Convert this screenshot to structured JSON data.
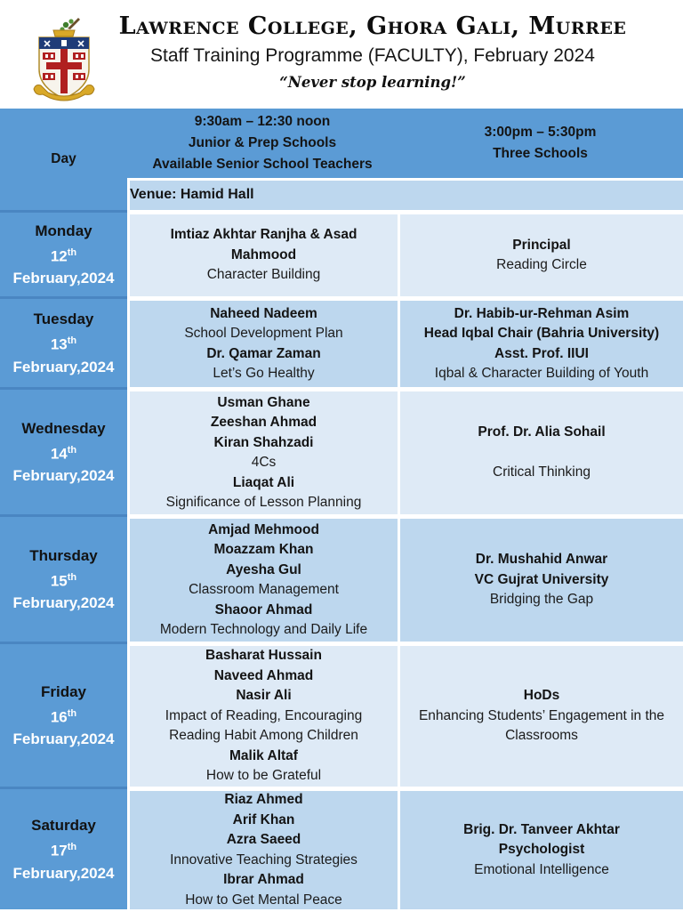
{
  "header": {
    "college_title": "Lawrence College, Ghora Gali, Murree",
    "programme_title": "Staff Training Programme (FACULTY), February 2024",
    "motto": "“Never stop learning!”",
    "crest": "lawrence-college-coat-of-arms"
  },
  "colors": {
    "header_blue": "#5B9BD5",
    "row_light": "#DEEAF6",
    "row_dark": "#BDD7EE",
    "day_separator": "#4A86C2",
    "day_text": "#FFFFFF",
    "body_text": "#1B1B1B"
  },
  "table": {
    "header": {
      "day": "Day",
      "morning": [
        "9:30am – 12:30 noon",
        "Junior & Prep Schools",
        "Available Senior School Teachers"
      ],
      "afternoon": [
        "3:00pm – 5:30pm",
        "Three Schools"
      ]
    },
    "venue": "Venue: Hamid Hall",
    "rows": [
      {
        "day": "Monday",
        "date": "12",
        "ordinal": "th",
        "month_year": "February,2024",
        "morning": [
          {
            "text": "Imtiaz Akhtar Ranjha & Asad Mahmood",
            "bold": true
          },
          {
            "text": "Character Building",
            "bold": false
          }
        ],
        "afternoon": [
          {
            "text": "Principal",
            "bold": true
          },
          {
            "text": "Reading Circle",
            "bold": false
          }
        ]
      },
      {
        "day": "Tuesday",
        "date": "13",
        "ordinal": "th",
        "month_year": "February,2024",
        "morning": [
          {
            "text": "Naheed Nadeem",
            "bold": true
          },
          {
            "text": "School Development Plan",
            "bold": false
          },
          {
            "text": "Dr. Qamar Zaman",
            "bold": true
          },
          {
            "text": "Let’s Go Healthy",
            "bold": false
          }
        ],
        "afternoon": [
          {
            "text": "Dr. Habib-ur-Rehman Asim",
            "bold": true
          },
          {
            "text": "Head Iqbal Chair (Bahria University)",
            "bold": true
          },
          {
            "text": "Asst. Prof. IIUI",
            "bold": true
          },
          {
            "text": "Iqbal & Character Building of Youth",
            "bold": false
          }
        ]
      },
      {
        "day": "Wednesday",
        "date": "14",
        "ordinal": "th",
        "month_year": "February,2024",
        "morning": [
          {
            "text": "Usman Ghane",
            "bold": true
          },
          {
            "text": "Zeeshan Ahmad",
            "bold": true
          },
          {
            "text": "Kiran Shahzadi",
            "bold": true
          },
          {
            "text": "4Cs",
            "bold": false
          },
          {
            "text": "Liaqat Ali",
            "bold": true
          },
          {
            "text": "Significance of Lesson Planning",
            "bold": false
          }
        ],
        "afternoon": [
          {
            "text": "Prof. Dr. Alia Sohail",
            "bold": true
          },
          {
            "text": "",
            "bold": false
          },
          {
            "text": "Critical Thinking",
            "bold": false
          }
        ]
      },
      {
        "day": "Thursday",
        "date": "15",
        "ordinal": "th",
        "month_year": "February,2024",
        "morning": [
          {
            "text": "Amjad Mehmood",
            "bold": true
          },
          {
            "text": "Moazzam Khan",
            "bold": true
          },
          {
            "text": "Ayesha Gul",
            "bold": true
          },
          {
            "text": "Classroom Management",
            "bold": false
          },
          {
            "text": "Shaoor Ahmad",
            "bold": true
          },
          {
            "text": "Modern Technology and Daily Life",
            "bold": false
          }
        ],
        "afternoon": [
          {
            "text": "Dr. Mushahid Anwar",
            "bold": true
          },
          {
            "text": "VC Gujrat University",
            "bold": true
          },
          {
            "text": "Bridging the Gap",
            "bold": false
          }
        ]
      },
      {
        "day": "Friday",
        "date": "16",
        "ordinal": "th",
        "month_year": "February,2024",
        "morning": [
          {
            "text": "Basharat Hussain",
            "bold": true
          },
          {
            "text": "Naveed Ahmad",
            "bold": true
          },
          {
            "text": "Nasir Ali",
            "bold": true
          },
          {
            "text": "Impact of Reading, Encouraging Reading Habit Among Children",
            "bold": false
          },
          {
            "text": "Malik Altaf",
            "bold": true
          },
          {
            "text": "How to be Grateful",
            "bold": false
          }
        ],
        "afternoon": [
          {
            "text": "HoDs",
            "bold": true
          },
          {
            "text": "Enhancing Students’ Engagement in the Classrooms",
            "bold": false
          }
        ]
      },
      {
        "day": "Saturday",
        "date": "17",
        "ordinal": "th",
        "month_year": "February,2024",
        "morning": [
          {
            "text": "Riaz Ahmed",
            "bold": true
          },
          {
            "text": "Arif Khan",
            "bold": true
          },
          {
            "text": "Azra Saeed",
            "bold": true
          },
          {
            "text": "Innovative Teaching Strategies",
            "bold": false
          },
          {
            "text": "Ibrar Ahmad",
            "bold": true
          },
          {
            "text": "How to Get Mental Peace",
            "bold": false
          }
        ],
        "afternoon": [
          {
            "text": "Brig. Dr. Tanveer Akhtar",
            "bold": true
          },
          {
            "text": "Psychologist",
            "bold": true
          },
          {
            "text": "Emotional Intelligence",
            "bold": false
          }
        ]
      }
    ]
  }
}
